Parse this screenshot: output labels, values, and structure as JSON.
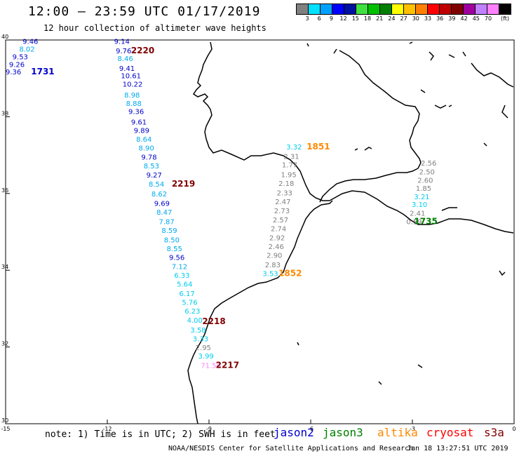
{
  "header": {
    "title": "12:00 – 23:59 UTC 01/17/2019",
    "subtitle": "12 hour collection of altimeter wave heights"
  },
  "colorbar": {
    "colors": [
      "#808080",
      "#00e0ff",
      "#00a0ff",
      "#0000ff",
      "#0010a0",
      "#40e040",
      "#00c000",
      "#008000",
      "#ffff00",
      "#ffc000",
      "#ff8000",
      "#ff0000",
      "#c00000",
      "#800000",
      "#a000a0",
      "#c080ff",
      "#ff80ff",
      "#000000"
    ],
    "labels": [
      "3",
      "6",
      "9",
      "12",
      "15",
      "18",
      "21",
      "24",
      "27",
      "30",
      "33",
      "36",
      "39",
      "42",
      "45",
      "70"
    ],
    "unit": "(ft)"
  },
  "axes": {
    "lon_ticks": [
      "-15",
      "-12",
      "-9",
      "-6",
      "-3",
      "0"
    ],
    "lat_ticks": [
      "40",
      "38",
      "36",
      "34",
      "32",
      "30"
    ]
  },
  "tracks": [
    {
      "pass": "1731",
      "pass_color": "#0000cc",
      "points": [
        {
          "v": "9.46",
          "c": "#0000cc",
          "lon": -14.5,
          "lat": 39.9
        },
        {
          "v": "8.02",
          "c": "#00aaee",
          "lon": -14.6,
          "lat": 39.7
        },
        {
          "v": "9.53",
          "c": "#0000cc",
          "lon": -14.8,
          "lat": 39.5
        },
        {
          "v": "9.26",
          "c": "#0000cc",
          "lon": -14.9,
          "lat": 39.3
        },
        {
          "v": "9.36",
          "c": "#0000cc",
          "lon": -15.0,
          "lat": 39.1
        }
      ]
    },
    {
      "pass": "2220",
      "pass_color": "#800000",
      "points": [
        {
          "v": "9.14",
          "c": "#0000cc",
          "lon": -11.8,
          "lat": 39.9
        },
        {
          "v": "9.76",
          "c": "#0000cc",
          "lon": -11.75,
          "lat": 39.65
        },
        {
          "v": "8.46",
          "c": "#00aaee",
          "lon": -11.7,
          "lat": 39.45
        },
        {
          "v": "9.41",
          "c": "#0000cc",
          "lon": -11.65,
          "lat": 39.2
        },
        {
          "v": "10.61",
          "c": "#0000cc",
          "lon": -11.6,
          "lat": 39.0
        },
        {
          "v": "10.22",
          "c": "#0000cc",
          "lon": -11.55,
          "lat": 38.78
        },
        {
          "v": "8.98",
          "c": "#00aaee",
          "lon": -11.5,
          "lat": 38.5
        },
        {
          "v": "8.88",
          "c": "#00aaee",
          "lon": -11.45,
          "lat": 38.28
        },
        {
          "v": "9.36",
          "c": "#0000cc",
          "lon": -11.38,
          "lat": 38.07
        },
        {
          "v": "9.61",
          "c": "#0000cc",
          "lon": -11.3,
          "lat": 37.8
        },
        {
          "v": "9.89",
          "c": "#0000cc",
          "lon": -11.22,
          "lat": 37.58
        },
        {
          "v": "8.64",
          "c": "#00aaee",
          "lon": -11.15,
          "lat": 37.35
        },
        {
          "v": "8.90",
          "c": "#00aaee",
          "lon": -11.08,
          "lat": 37.12
        },
        {
          "v": "9.78",
          "c": "#0000cc",
          "lon": -11.0,
          "lat": 36.88
        },
        {
          "v": "8.53",
          "c": "#00aaee",
          "lon": -10.93,
          "lat": 36.65
        },
        {
          "v": "9.27",
          "c": "#0000cc",
          "lon": -10.85,
          "lat": 36.42
        },
        {
          "v": "8.54",
          "c": "#00aaee",
          "lon": -10.78,
          "lat": 36.18
        }
      ]
    },
    {
      "pass": "2219",
      "pass_color": "#800000",
      "points": [
        {
          "v": "8.62",
          "c": "#00aaee",
          "lon": -10.7,
          "lat": 35.92
        },
        {
          "v": "9.69",
          "c": "#0000cc",
          "lon": -10.62,
          "lat": 35.68
        },
        {
          "v": "8.47",
          "c": "#00aaee",
          "lon": -10.55,
          "lat": 35.45
        },
        {
          "v": "7.87",
          "c": "#00aaee",
          "lon": -10.48,
          "lat": 35.2
        },
        {
          "v": "8.59",
          "c": "#00aaee",
          "lon": -10.4,
          "lat": 34.97
        },
        {
          "v": "8.50",
          "c": "#00aaee",
          "lon": -10.33,
          "lat": 34.73
        },
        {
          "v": "8.55",
          "c": "#00aaee",
          "lon": -10.25,
          "lat": 34.5
        },
        {
          "v": "9.56",
          "c": "#0000cc",
          "lon": -10.18,
          "lat": 34.27
        },
        {
          "v": "7.12",
          "c": "#00aaee",
          "lon": -10.1,
          "lat": 34.03
        },
        {
          "v": "6.33",
          "c": "#00ccee",
          "lon": -10.03,
          "lat": 33.8
        },
        {
          "v": "5.64",
          "c": "#00ccee",
          "lon": -9.95,
          "lat": 33.57
        },
        {
          "v": "6.17",
          "c": "#00ccee",
          "lon": -9.88,
          "lat": 33.33
        },
        {
          "v": "5.76",
          "c": "#00ccee",
          "lon": -9.8,
          "lat": 33.1
        },
        {
          "v": "6.23",
          "c": "#00ccee",
          "lon": -9.72,
          "lat": 32.87
        },
        {
          "v": "4.00",
          "c": "#00ccee",
          "lon": -9.65,
          "lat": 32.63
        }
      ]
    },
    {
      "pass": "2218",
      "pass_color": "#800000",
      "points": [
        {
          "v": "3.58",
          "c": "#00ccee",
          "lon": -9.55,
          "lat": 32.38
        },
        {
          "v": "3.33",
          "c": "#00ccee",
          "lon": -9.48,
          "lat": 32.15
        },
        {
          "v": "2.95",
          "c": "#808080",
          "lon": -9.4,
          "lat": 31.92
        },
        {
          "v": "3.99",
          "c": "#00ccee",
          "lon": -9.32,
          "lat": 31.7
        },
        {
          "v": "71.50",
          "c": "#ff80ff",
          "lon": -9.24,
          "lat": 31.45
        }
      ]
    },
    {
      "pass": "1851",
      "pass_color": "#ff8800",
      "points": [
        {
          "v": "3.32",
          "c": "#00ccee",
          "lon": -6.72,
          "lat": 37.15
        },
        {
          "v": "2.31",
          "c": "#808080",
          "lon": -6.8,
          "lat": 36.9
        },
        {
          "v": "1.77",
          "c": "#808080",
          "lon": -6.85,
          "lat": 36.68
        },
        {
          "v": "1.95",
          "c": "#808080",
          "lon": -6.88,
          "lat": 36.43
        },
        {
          "v": "2.18",
          "c": "#808080",
          "lon": -6.95,
          "lat": 36.2
        },
        {
          "v": "2.33",
          "c": "#808080",
          "lon": -7.0,
          "lat": 35.95
        }
      ]
    },
    {
      "pass": "1852",
      "pass_color": "#ff8800",
      "points": [
        {
          "v": "2.47",
          "c": "#808080",
          "lon": -7.05,
          "lat": 35.72
        },
        {
          "v": "2.73",
          "c": "#808080",
          "lon": -7.08,
          "lat": 35.48
        },
        {
          "v": "2.57",
          "c": "#808080",
          "lon": -7.12,
          "lat": 35.25
        },
        {
          "v": "2.74",
          "c": "#808080",
          "lon": -7.18,
          "lat": 35.02
        },
        {
          "v": "2.92",
          "c": "#808080",
          "lon": -7.22,
          "lat": 34.78
        },
        {
          "v": "2.46",
          "c": "#808080",
          "lon": -7.25,
          "lat": 34.55
        },
        {
          "v": "2.90",
          "c": "#808080",
          "lon": -7.3,
          "lat": 34.32
        },
        {
          "v": "2.83",
          "c": "#808080",
          "lon": -7.35,
          "lat": 34.08
        },
        {
          "v": "3.53",
          "c": "#00ccee",
          "lon": -7.42,
          "lat": 33.85
        }
      ]
    },
    {
      "pass": "1735",
      "pass_color": "#008000",
      "points": [
        {
          "v": "2.56",
          "c": "#808080",
          "lon": -2.75,
          "lat": 36.73
        },
        {
          "v": "2.50",
          "c": "#808080",
          "lon": -2.8,
          "lat": 36.5
        },
        {
          "v": "2.60",
          "c": "#808080",
          "lon": -2.85,
          "lat": 36.28
        },
        {
          "v": "1.85",
          "c": "#808080",
          "lon": -2.9,
          "lat": 36.07
        },
        {
          "v": "3.21",
          "c": "#00ccee",
          "lon": -2.95,
          "lat": 35.85
        },
        {
          "v": "3.10",
          "c": "#00ccee",
          "lon": -3.02,
          "lat": 35.65
        },
        {
          "v": "2.41",
          "c": "#808080",
          "lon": -3.08,
          "lat": 35.42
        },
        {
          "v": "0.59",
          "c": "#808080",
          "lon": -3.18,
          "lat": 35.2
        }
      ]
    }
  ],
  "pass_labels": [
    {
      "text": "1731",
      "c": "#0000cc",
      "lon": -14.25,
      "lat": 39.1
    },
    {
      "text": "2220",
      "c": "#800000",
      "lon": -11.3,
      "lat": 39.65
    },
    {
      "text": "2219",
      "c": "#800000",
      "lon": -10.1,
      "lat": 36.18
    },
    {
      "text": "2218",
      "c": "#800000",
      "lon": -9.2,
      "lat": 32.6
    },
    {
      "text": "2217",
      "c": "#800000",
      "lon": -8.8,
      "lat": 31.45
    },
    {
      "text": "1851",
      "c": "#ff8800",
      "lon": -6.12,
      "lat": 37.15
    },
    {
      "text": "1852",
      "c": "#ff8800",
      "lon": -6.95,
      "lat": 33.85
    },
    {
      "text": "1735",
      "c": "#008000",
      "lon": -2.95,
      "lat": 35.2
    }
  ],
  "footer": {
    "note": "note: 1) Time is in UTC; 2) SWH is in feet",
    "legend": [
      {
        "name": "jason2",
        "color": "#0000cc"
      },
      {
        "name": "jason3",
        "color": "#008000"
      },
      {
        "name": "altika",
        "color": "#ff8800"
      },
      {
        "name": "cryosat",
        "color": "#ff0000"
      },
      {
        "name": "s3a",
        "color": "#800000"
      }
    ],
    "credit": "NOAA/NESDIS Center for Satellite Applications and Research",
    "timestamp": "Jan 18 13:27:51 UTC 2019"
  }
}
